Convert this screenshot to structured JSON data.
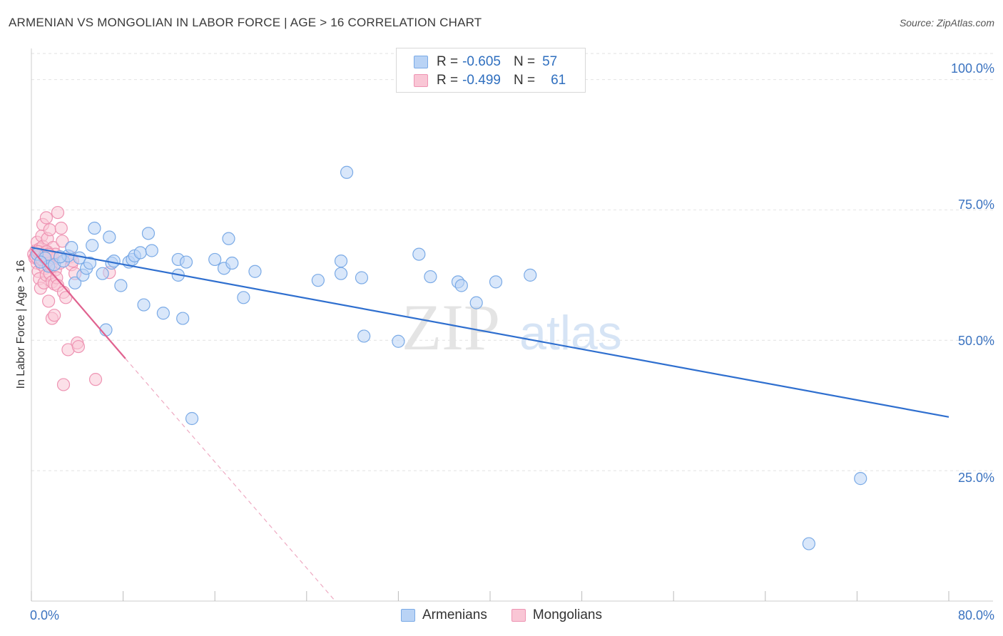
{
  "title": "ARMENIAN VS MONGOLIAN IN LABOR FORCE | AGE > 16 CORRELATION CHART",
  "source": "Source: ZipAtlas.com",
  "watermark": {
    "zip": "ZIP",
    "atlas": "atlas"
  },
  "legend": {
    "series": [
      {
        "name": "Armenians",
        "r_label": "R =",
        "r_value": "-0.605",
        "n_label": "N =",
        "n_value": "57",
        "fill": "#b9d3f5",
        "stroke": "#7aaae6"
      },
      {
        "name": "Mongolians",
        "r_label": "R =",
        "r_value": "-0.499",
        "n_label": "N =",
        "n_value": "61",
        "fill": "#f9c6d5",
        "stroke": "#ee94b3"
      }
    ]
  },
  "chart_data": {
    "type": "scatter",
    "title": "ARMENIAN VS MONGOLIAN IN LABOR FORCE | AGE > 16 CORRELATION CHART",
    "xlabel": "",
    "ylabel": "In Labor Force | Age > 16",
    "xlim": [
      0,
      80
    ],
    "ylim": [
      0,
      105
    ],
    "x_tick_labels": [
      "0.0%",
      "80.0%"
    ],
    "y_ticks": [
      25,
      50,
      75,
      100
    ],
    "y_tick_labels": [
      "25.0%",
      "50.0%",
      "75.0%",
      "100.0%"
    ],
    "grid": true,
    "legend_position": "top-center",
    "series": [
      {
        "name": "Armenians",
        "color": "#7aaae6",
        "fill": "#b9d3f5",
        "points": [
          [
            0.5,
            66.5
          ],
          [
            1.2,
            65.8
          ],
          [
            1.5,
            64.2
          ],
          [
            2.0,
            64.5
          ],
          [
            2.8,
            65.2
          ],
          [
            3.2,
            66.2
          ],
          [
            3.5,
            67.8
          ],
          [
            3.8,
            61.0
          ],
          [
            4.2,
            65.8
          ],
          [
            4.5,
            62.5
          ],
          [
            4.8,
            63.8
          ],
          [
            5.1,
            64.8
          ],
          [
            5.3,
            68.2
          ],
          [
            5.5,
            71.5
          ],
          [
            6.2,
            62.8
          ],
          [
            6.5,
            52.0
          ],
          [
            6.8,
            69.8
          ],
          [
            7.0,
            64.8
          ],
          [
            7.2,
            65.2
          ],
          [
            7.8,
            60.5
          ],
          [
            8.5,
            65.0
          ],
          [
            8.8,
            65.5
          ],
          [
            9.0,
            66.2
          ],
          [
            9.5,
            66.8
          ],
          [
            9.8,
            56.8
          ],
          [
            10.2,
            70.5
          ],
          [
            10.5,
            67.2
          ],
          [
            11.5,
            55.2
          ],
          [
            12.8,
            62.5
          ],
          [
            12.8,
            65.5
          ],
          [
            13.2,
            54.2
          ],
          [
            13.5,
            65.0
          ],
          [
            14.0,
            35.0
          ],
          [
            16.0,
            65.5
          ],
          [
            16.8,
            63.8
          ],
          [
            17.2,
            69.5
          ],
          [
            17.5,
            64.8
          ],
          [
            18.5,
            58.2
          ],
          [
            19.5,
            63.2
          ],
          [
            25.0,
            61.5
          ],
          [
            27.0,
            65.2
          ],
          [
            27.0,
            62.8
          ],
          [
            27.5,
            82.2
          ],
          [
            28.8,
            62.0
          ],
          [
            29.0,
            50.8
          ],
          [
            32.0,
            49.8
          ],
          [
            33.8,
            66.5
          ],
          [
            34.8,
            62.2
          ],
          [
            37.2,
            61.2
          ],
          [
            37.5,
            60.5
          ],
          [
            38.8,
            57.2
          ],
          [
            40.5,
            61.2
          ],
          [
            43.5,
            62.5
          ],
          [
            67.8,
            11.0
          ],
          [
            72.3,
            23.5
          ],
          [
            0.8,
            65.0
          ],
          [
            2.5,
            66.0
          ]
        ],
        "trend": {
          "x": [
            0,
            80
          ],
          "y": [
            67.8,
            35.3
          ]
        }
      },
      {
        "name": "Mongolians",
        "color": "#ee94b3",
        "fill": "#f9c6d5",
        "points": [
          [
            0.2,
            66.5
          ],
          [
            0.3,
            65.8
          ],
          [
            0.4,
            67.2
          ],
          [
            0.5,
            64.8
          ],
          [
            0.5,
            68.8
          ],
          [
            0.6,
            63.2
          ],
          [
            0.6,
            65.5
          ],
          [
            0.7,
            61.8
          ],
          [
            0.7,
            67.5
          ],
          [
            0.8,
            60.0
          ],
          [
            0.8,
            66.2
          ],
          [
            0.9,
            70.0
          ],
          [
            0.9,
            64.5
          ],
          [
            1.0,
            72.2
          ],
          [
            1.0,
            68.0
          ],
          [
            1.1,
            65.2
          ],
          [
            1.1,
            61.0
          ],
          [
            1.2,
            66.8
          ],
          [
            1.2,
            63.8
          ],
          [
            1.3,
            73.5
          ],
          [
            1.3,
            62.5
          ],
          [
            1.4,
            69.5
          ],
          [
            1.4,
            67.0
          ],
          [
            1.5,
            65.0
          ],
          [
            1.5,
            57.5
          ],
          [
            1.6,
            62.8
          ],
          [
            1.6,
            71.2
          ],
          [
            1.7,
            66.0
          ],
          [
            1.7,
            64.2
          ],
          [
            1.8,
            54.2
          ],
          [
            1.8,
            61.2
          ],
          [
            1.9,
            67.8
          ],
          [
            1.9,
            65.8
          ],
          [
            2.0,
            60.8
          ],
          [
            2.0,
            54.8
          ],
          [
            2.1,
            63.5
          ],
          [
            2.1,
            66.5
          ],
          [
            2.2,
            62.0
          ],
          [
            2.3,
            74.5
          ],
          [
            2.3,
            60.5
          ],
          [
            2.5,
            64.8
          ],
          [
            2.6,
            71.5
          ],
          [
            2.7,
            69.0
          ],
          [
            2.8,
            59.2
          ],
          [
            3.0,
            58.2
          ],
          [
            3.2,
            48.2
          ],
          [
            3.4,
            66.0
          ],
          [
            3.5,
            64.5
          ],
          [
            3.6,
            65.2
          ],
          [
            3.8,
            62.8
          ],
          [
            4.0,
            49.5
          ],
          [
            4.1,
            48.8
          ],
          [
            2.8,
            41.5
          ],
          [
            5.6,
            42.5
          ],
          [
            6.8,
            63.0
          ],
          [
            0.4,
            66.0
          ],
          [
            0.6,
            67.0
          ],
          [
            0.9,
            65.5
          ],
          [
            1.1,
            66.0
          ],
          [
            1.3,
            67.0
          ],
          [
            1.5,
            66.5
          ]
        ],
        "trend": {
          "x": [
            0,
            8.2
          ],
          "y": [
            67.5,
            46.5
          ]
        },
        "trend_extension": {
          "x": [
            8.2,
            26.5
          ],
          "y": [
            46.5,
            0
          ]
        }
      }
    ]
  }
}
